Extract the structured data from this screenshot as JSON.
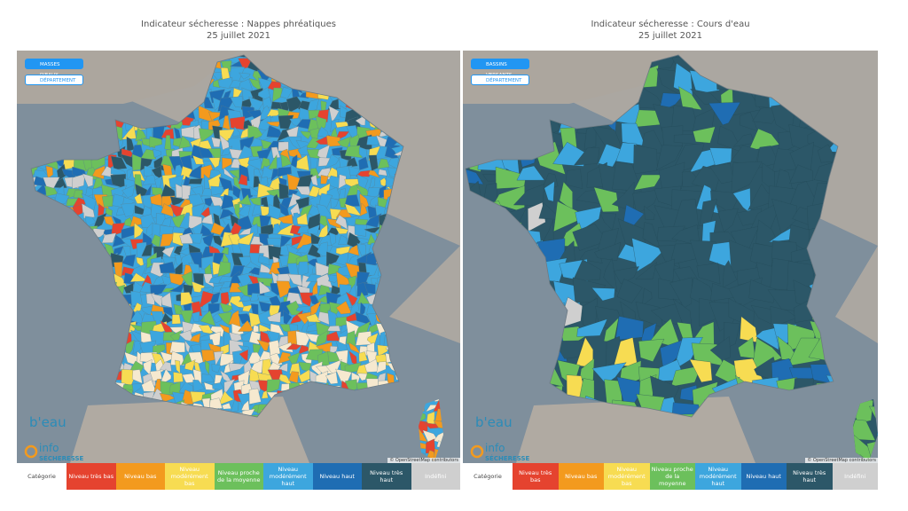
{
  "panels": [
    {
      "title": "Indicateur sécheresse : Nappes phréatiques",
      "date": "25 juillet 2021",
      "buttons": [
        "MASSES D'EAUX",
        "DÉPARTEMENT"
      ],
      "attribution": "© OpenStreetMap contributors",
      "logo": {
        "brand": "b'eau",
        "line1": "info",
        "line2": "SÉCHERESSE"
      },
      "legend": {
        "title": "Catégorie",
        "items": [
          {
            "label": "Niveau très bas",
            "color": "#e5432f"
          },
          {
            "label": "Niveau bas",
            "color": "#f39a1e"
          },
          {
            "label": "Niveau modérément bas",
            "color": "#f7dc52"
          },
          {
            "label": "Niveau proche de la moyenne",
            "color": "#6cc05c"
          },
          {
            "label": "Niveau modérément haut",
            "color": "#3da6de"
          },
          {
            "label": "Niveau haut",
            "color": "#1f6db3"
          },
          {
            "label": "Niveau très haut",
            "color": "#2c5768"
          },
          {
            "label": "Indéfini",
            "color": "#cfcfcf"
          }
        ]
      }
    },
    {
      "title": "Indicateur sécheresse : Cours d'eau",
      "date": "25 juillet 2021",
      "buttons": [
        "BASSINS VERSANTS",
        "DÉPARTEMENT"
      ],
      "attribution": "© OpenStreetMap contributors",
      "logo": {
        "brand": "b'eau",
        "line1": "info",
        "line2": "SÉCHERESSE"
      },
      "legend": {
        "title": "Catégorie",
        "items": [
          {
            "label": "Niveau très bas",
            "color": "#e5432f"
          },
          {
            "label": "Niveau bas",
            "color": "#f39a1e"
          },
          {
            "label": "Niveau modérément bas",
            "color": "#f7dc52"
          },
          {
            "label": "Niveau proche de la moyenne",
            "color": "#6cc05c"
          },
          {
            "label": "Niveau modérément haut",
            "color": "#3da6de"
          },
          {
            "label": "Niveau haut",
            "color": "#1f6db3"
          },
          {
            "label": "Niveau très haut",
            "color": "#2c5768"
          },
          {
            "label": "Indéfini",
            "color": "#cfcfcf"
          }
        ]
      }
    }
  ]
}
